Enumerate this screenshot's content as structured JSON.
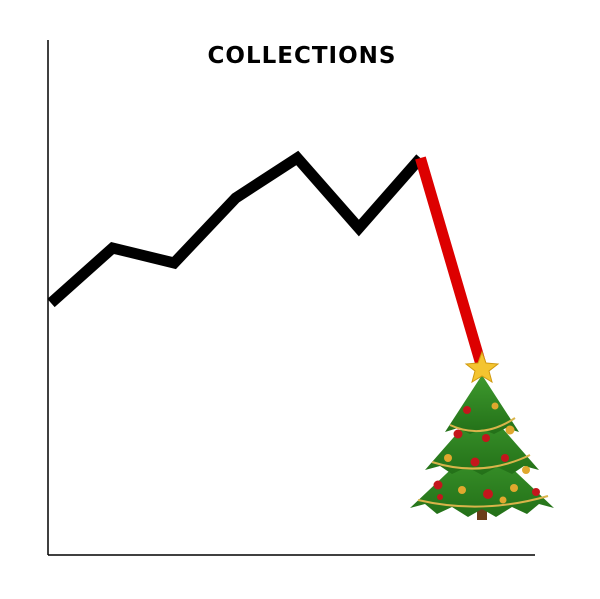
{
  "chart_data": {
    "type": "line",
    "title": "COLLECTIONS",
    "xlabel": "",
    "ylabel": "",
    "grid": false,
    "legend": "none",
    "xlim": [
      0,
      7
    ],
    "ylim": [
      0,
      10
    ],
    "x": [
      0,
      1,
      2,
      3,
      4,
      5,
      6,
      7
    ],
    "series": [
      {
        "values": [
          5.0,
          6.1,
          5.8,
          7.1,
          7.9,
          6.5,
          7.9,
          3.7
        ],
        "colors": {
          "main": "#000000",
          "drop": "#dd0000"
        },
        "drop_from_index": 6,
        "end_marker": "christmas-tree-icon"
      }
    ]
  }
}
